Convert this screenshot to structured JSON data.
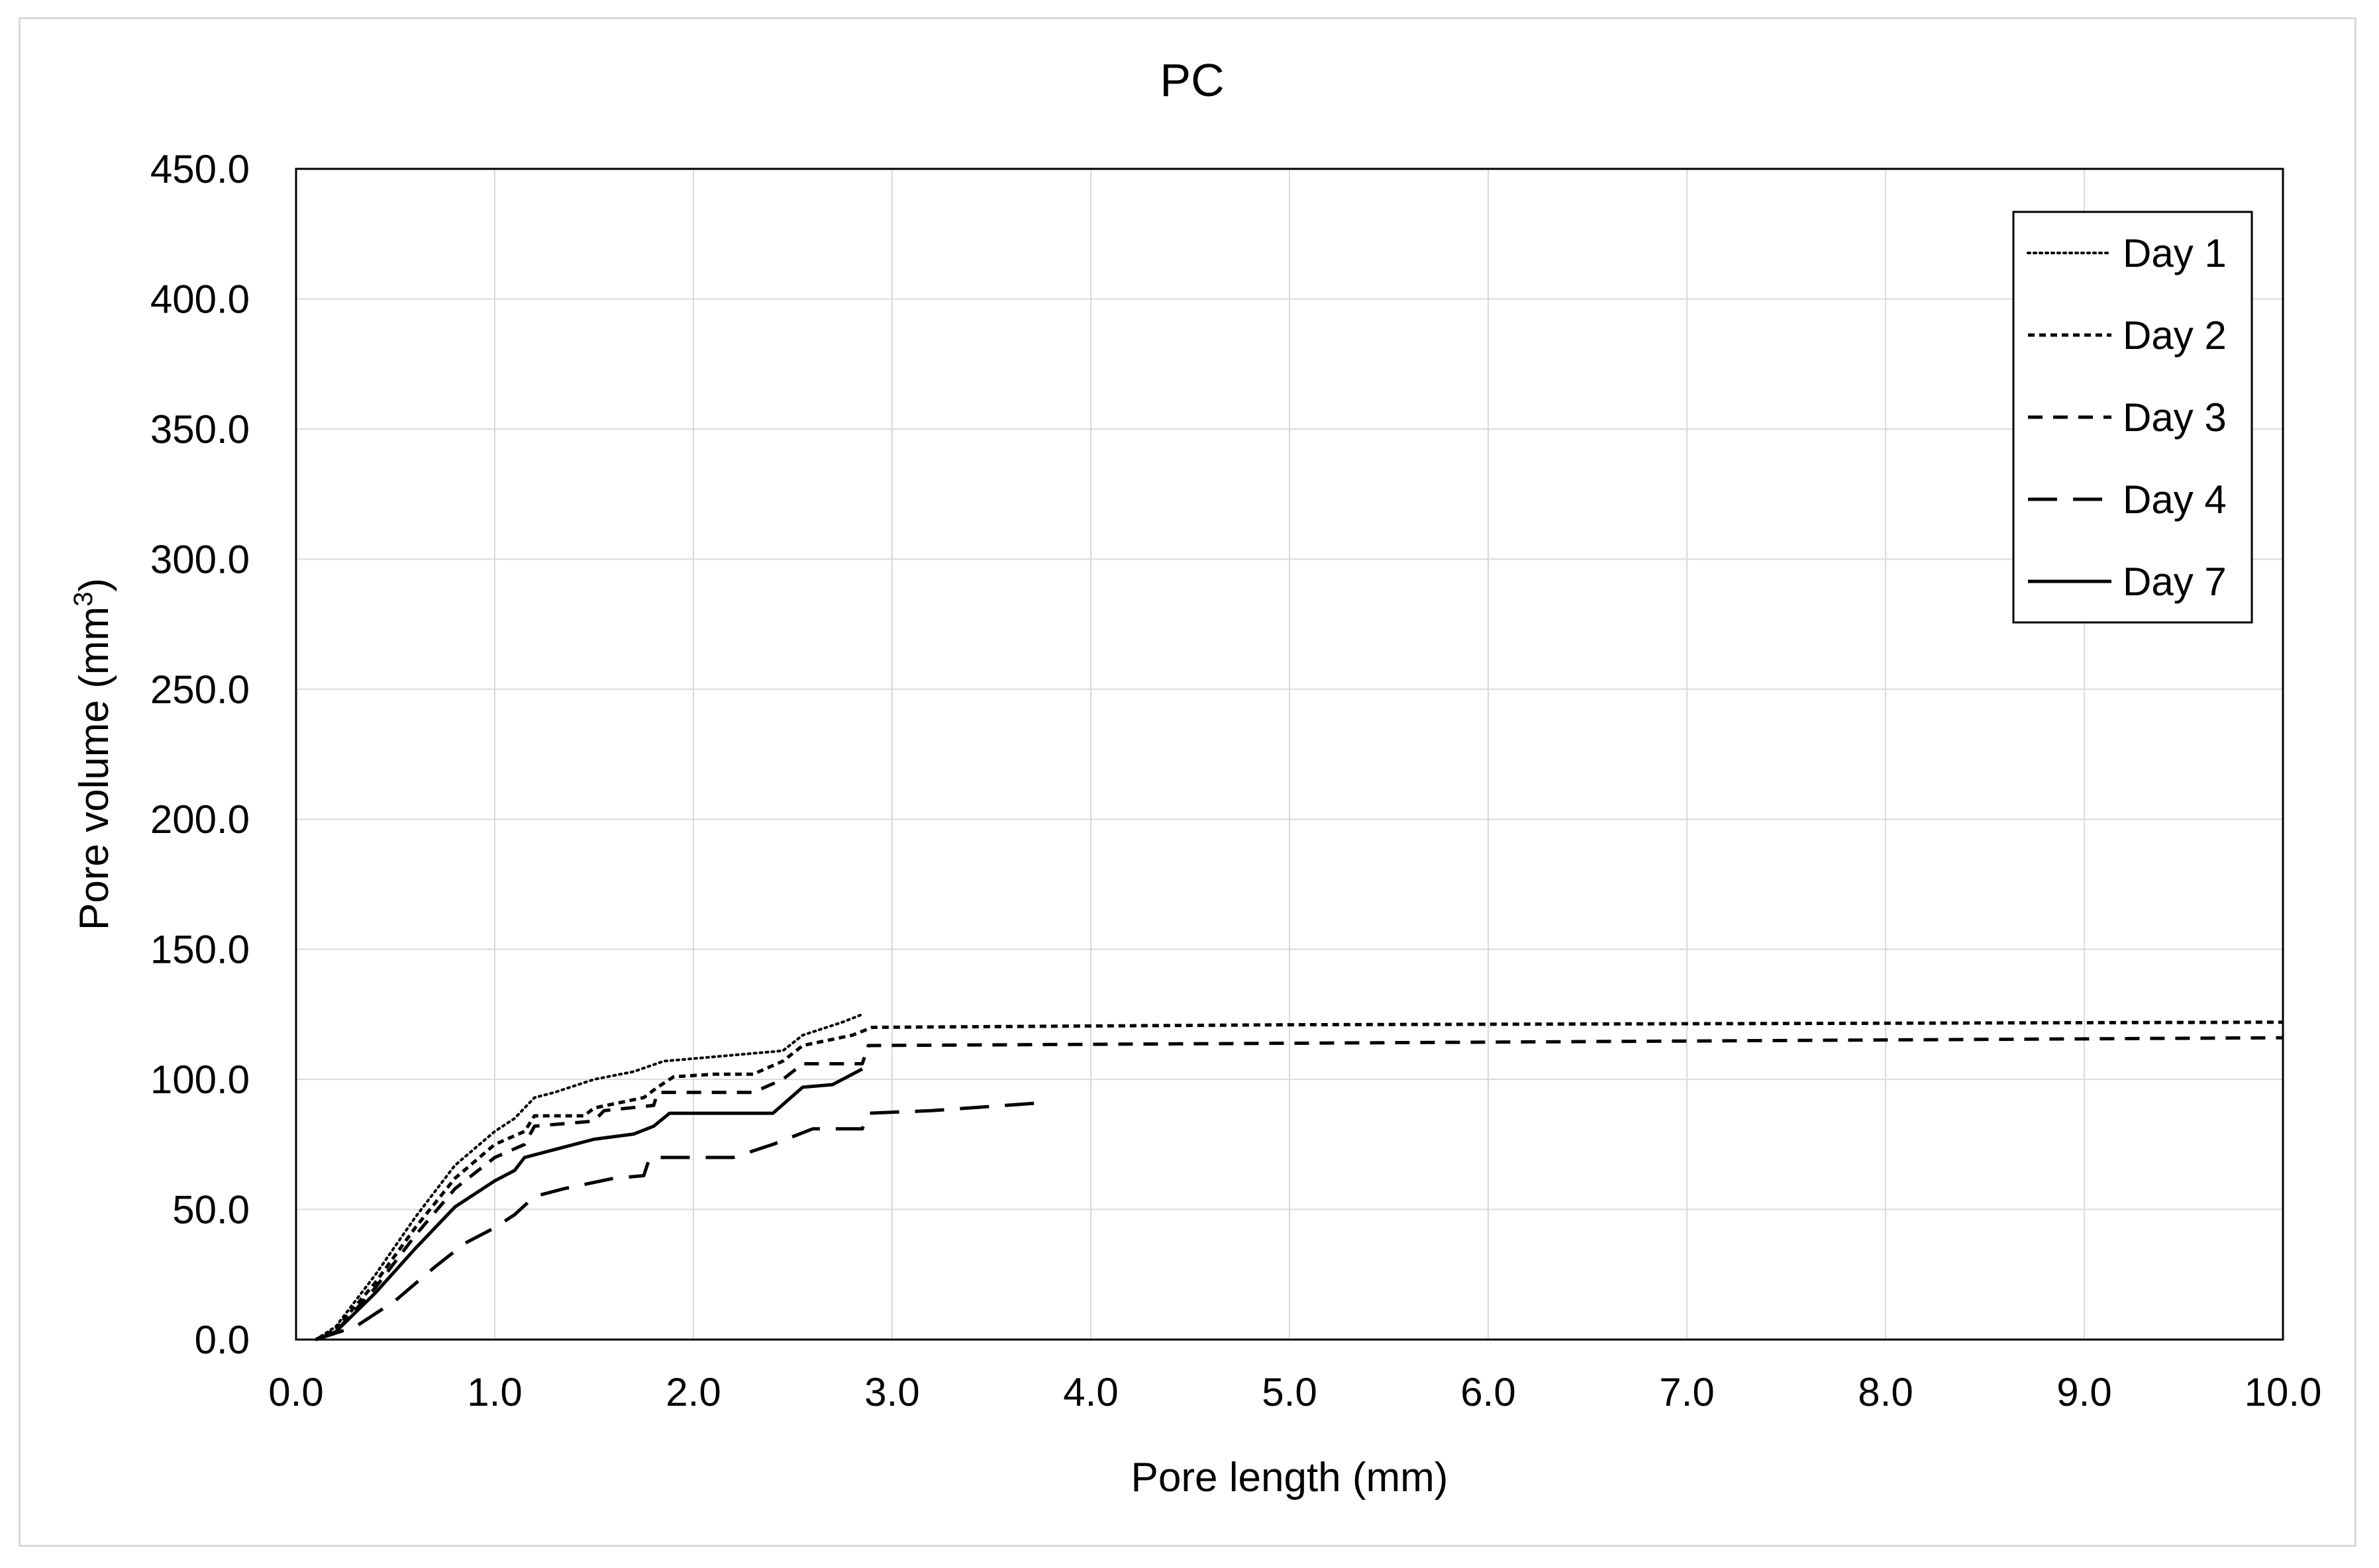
{
  "chart_data": {
    "type": "line",
    "title": "PC",
    "xlabel": "Pore length (mm)",
    "ylabel_main": "Pore volume (mm",
    "ylabel_sup": "3",
    "ylabel_close": ")",
    "xlim": [
      0,
      10
    ],
    "ylim": [
      0,
      450
    ],
    "grid": true,
    "legend_position": "top-right",
    "x_ticks": [
      "0.0",
      "1.0",
      "2.0",
      "3.0",
      "4.0",
      "5.0",
      "6.0",
      "7.0",
      "8.0",
      "9.0",
      "10.0"
    ],
    "y_ticks": [
      "0.0",
      "50.0",
      "100.0",
      "150.0",
      "200.0",
      "250.0",
      "300.0",
      "350.0",
      "400.0",
      "450.0"
    ],
    "series": [
      {
        "name": "Day 1",
        "style": "dotted",
        "x": [
          0.1,
          0.2,
          0.4,
          0.6,
          0.8,
          1.0,
          1.1,
          1.2,
          1.3,
          1.5,
          1.7,
          1.85,
          2.0,
          2.3,
          2.45,
          2.55,
          2.75,
          2.85
        ],
        "y": [
          0,
          5,
          25,
          47,
          67,
          80,
          85,
          93,
          95,
          100,
          103,
          107,
          108,
          110,
          111,
          117,
          122,
          125
        ]
      },
      {
        "name": "Day 2",
        "style": "short-dash",
        "x": [
          0.1,
          0.2,
          0.4,
          0.6,
          0.8,
          1.0,
          1.15,
          1.2,
          1.45,
          1.5,
          1.75,
          1.82,
          1.9,
          2.1,
          2.3,
          2.45,
          2.55,
          2.8,
          2.9,
          5.0,
          10.0
        ],
        "y": [
          0,
          4,
          22,
          43,
          62,
          75,
          80,
          86,
          86,
          89,
          93,
          97,
          101,
          102,
          102,
          107,
          113,
          117,
          120,
          121,
          122
        ]
      },
      {
        "name": "Day 3",
        "style": "dash",
        "x": [
          0.1,
          0.2,
          0.4,
          0.6,
          0.8,
          1.0,
          1.15,
          1.2,
          1.5,
          1.55,
          1.8,
          1.82,
          2.3,
          2.45,
          2.55,
          2.85,
          2.88,
          10.0
        ],
        "y": [
          0,
          3,
          20,
          40,
          58,
          70,
          75,
          82,
          84,
          88,
          90,
          95,
          95,
          100,
          106,
          106,
          113,
          116
        ]
      },
      {
        "name": "Day 4",
        "style": "long-dash",
        "x": [
          0.1,
          0.3,
          0.5,
          0.7,
          0.85,
          1.0,
          1.1,
          1.2,
          1.35,
          1.6,
          1.75,
          1.78,
          2.2,
          2.4,
          2.6,
          2.85,
          2.88,
          3.2,
          3.75
        ],
        "y": [
          0,
          5,
          15,
          28,
          37,
          43,
          48,
          55,
          58,
          62,
          63,
          70,
          70,
          75,
          81,
          81,
          87,
          88,
          91
        ]
      },
      {
        "name": "Day 7",
        "style": "solid",
        "x": [
          0.1,
          0.2,
          0.4,
          0.6,
          0.8,
          1.0,
          1.1,
          1.15,
          1.3,
          1.5,
          1.7,
          1.8,
          1.88,
          2.4,
          2.55,
          2.7,
          2.85
        ],
        "y": [
          0,
          3,
          18,
          35,
          51,
          61,
          65,
          70,
          73,
          77,
          79,
          82,
          87,
          87,
          97,
          98,
          104
        ]
      }
    ]
  }
}
